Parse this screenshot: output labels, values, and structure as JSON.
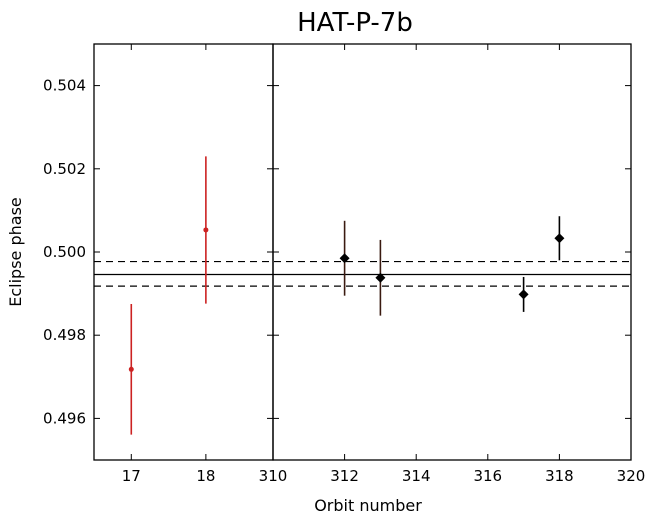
{
  "chart_data": {
    "type": "scatter",
    "title": "HAT-P-7b",
    "xlabel": "Orbit number",
    "ylabel": "Eclipse phase",
    "ylim": [
      0.495,
      0.505
    ],
    "yticks": [
      "0.496",
      "0.498",
      "0.500",
      "0.502",
      "0.504"
    ],
    "grid": false,
    "reference_lines": {
      "mean": 0.49946,
      "lower": 0.49918,
      "upper": 0.49977,
      "styles": [
        "solid",
        "dashed",
        "dashed"
      ]
    },
    "panels": [
      {
        "name": "left",
        "xlim": [
          16.5,
          18.9
        ],
        "xticks": [
          "17",
          "18"
        ],
        "series": [
          {
            "color": "#cc2222",
            "marker": "circle",
            "points": [
              {
                "x": 17,
                "y": 0.49718,
                "err": 0.00157
              },
              {
                "x": 18,
                "y": 0.50053,
                "err": 0.00177
              }
            ]
          }
        ]
      },
      {
        "name": "right",
        "xlim": [
          310,
          320
        ],
        "xticks": [
          "310",
          "312",
          "314",
          "316",
          "318",
          "320"
        ],
        "series": [
          {
            "color": "#000000",
            "marker": "diamond",
            "points": [
              {
                "x": 312,
                "y": 0.49985,
                "err": 0.0009,
                "errcolor": "#3a1a10"
              },
              {
                "x": 313,
                "y": 0.49938,
                "err": 0.00091,
                "errcolor": "#3a1a10"
              },
              {
                "x": 317,
                "y": 0.49898,
                "err": 0.00042,
                "errcolor": "#000000"
              },
              {
                "x": 318,
                "y": 0.50033,
                "err": 0.00053,
                "errcolor": "#000000"
              }
            ]
          }
        ]
      }
    ]
  }
}
